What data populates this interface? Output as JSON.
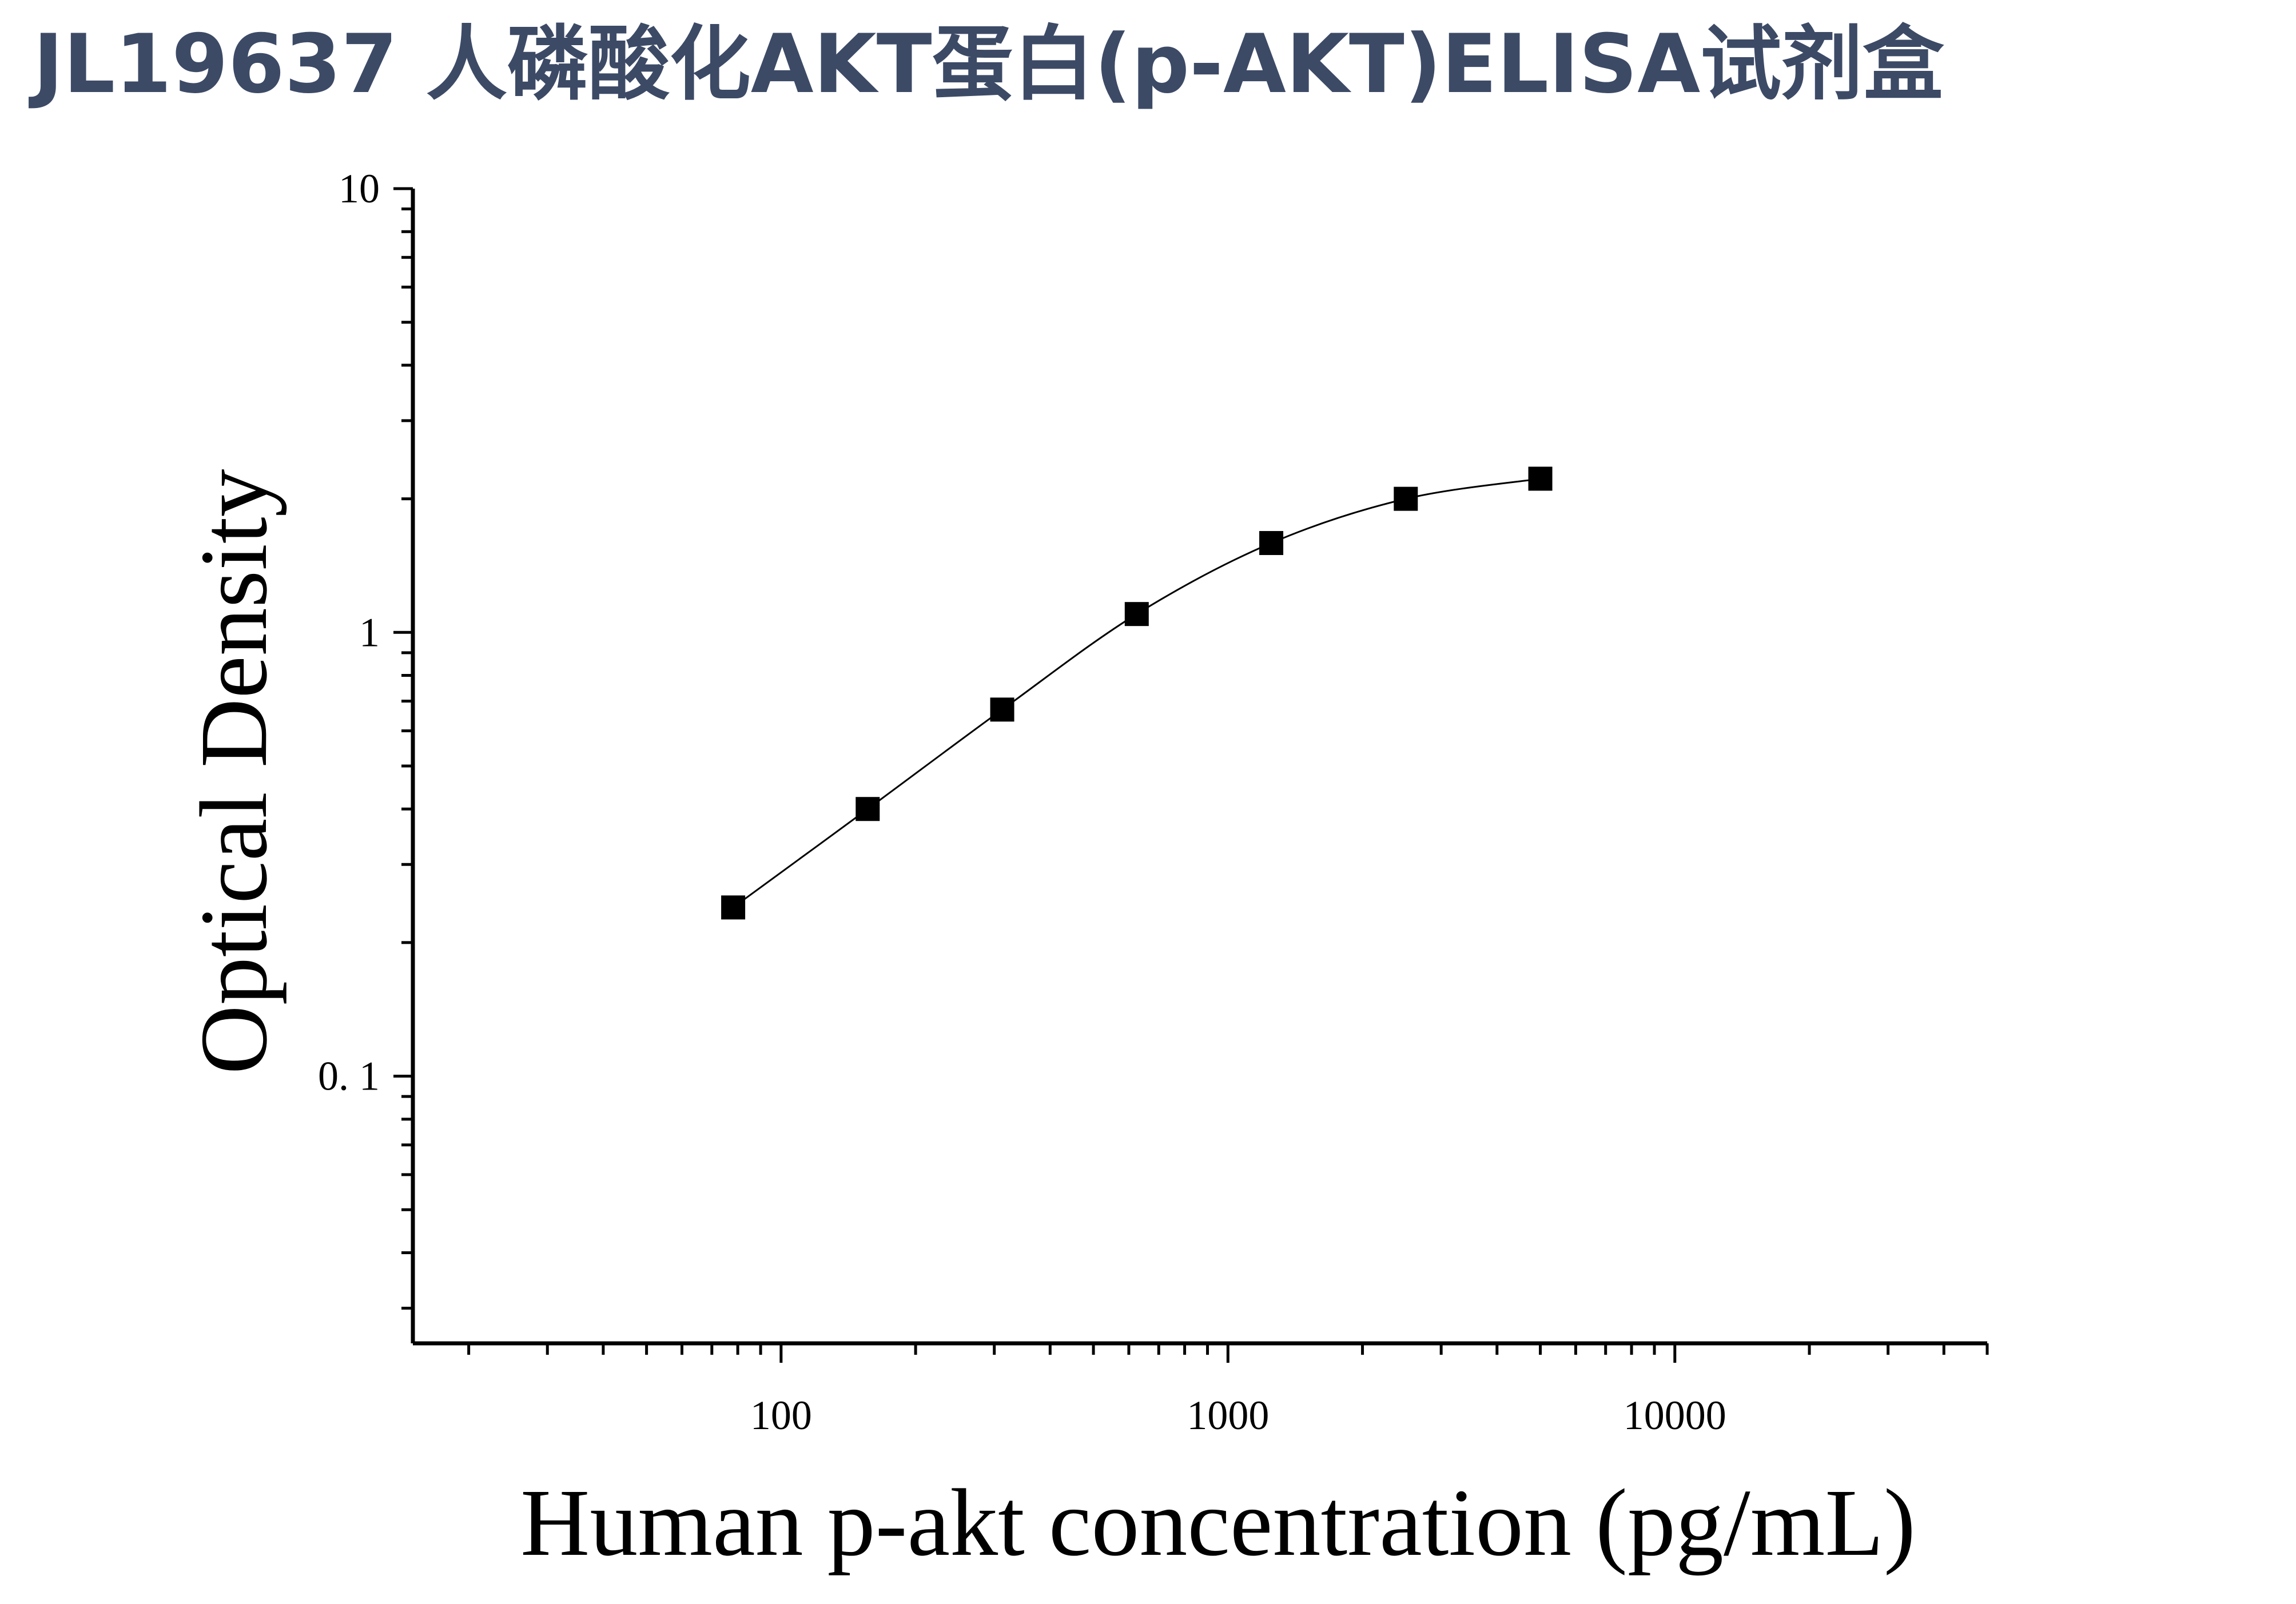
{
  "page": {
    "title": "JL19637 人磷酸化AKT蛋白(p-AKT)ELISA试剂盒"
  },
  "chart_data": {
    "type": "scatter",
    "title": "JL19637 人磷酸化AKT蛋白(p-AKT)ELISA试剂盒",
    "xlabel": "Human p-akt concentration (pg/mL)",
    "ylabel": "Optical Density",
    "x_scale": "log",
    "y_scale": "log",
    "xlim": [
      15,
      50000
    ],
    "ylim": [
      0.025,
      10
    ],
    "x_ticks": [
      {
        "value": 100,
        "label": "100"
      },
      {
        "value": 1000,
        "label": "1000"
      },
      {
        "value": 10000,
        "label": "10000"
      }
    ],
    "y_ticks": [
      {
        "value": 0.1,
        "label": "0. 1"
      },
      {
        "value": 1,
        "label": "1"
      },
      {
        "value": 10,
        "label": "10"
      }
    ],
    "grid": false,
    "legend": "none",
    "series": [
      {
        "x": [
          78.13,
          156.25,
          312.5,
          625,
          1250,
          2500,
          5000
        ],
        "y": [
          0.24,
          0.4,
          0.67,
          1.1,
          1.59,
          2.0,
          2.22
        ],
        "marker": "square",
        "color": "#000000",
        "fit_curve": true
      }
    ]
  }
}
